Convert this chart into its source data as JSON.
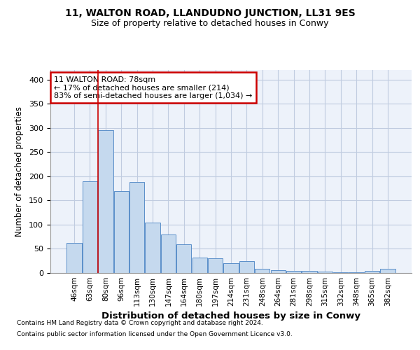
{
  "title1": "11, WALTON ROAD, LLANDUDNO JUNCTION, LL31 9ES",
  "title2": "Size of property relative to detached houses in Conwy",
  "xlabel": "Distribution of detached houses by size in Conwy",
  "ylabel": "Number of detached properties",
  "categories": [
    "46sqm",
    "63sqm",
    "80sqm",
    "96sqm",
    "113sqm",
    "130sqm",
    "147sqm",
    "164sqm",
    "180sqm",
    "197sqm",
    "214sqm",
    "231sqm",
    "248sqm",
    "264sqm",
    "281sqm",
    "298sqm",
    "315sqm",
    "332sqm",
    "348sqm",
    "365sqm",
    "382sqm"
  ],
  "values": [
    63,
    190,
    295,
    170,
    188,
    105,
    80,
    60,
    32,
    31,
    20,
    24,
    8,
    6,
    5,
    4,
    3,
    2,
    1,
    5,
    8
  ],
  "bar_color": "#c5d9ee",
  "bar_edge_color": "#5b8fc9",
  "background_color": "#edf2fa",
  "grid_color": "#c0cce0",
  "vline_color": "#cc0000",
  "annotation_text": "11 WALTON ROAD: 78sqm\n← 17% of detached houses are smaller (214)\n83% of semi-detached houses are larger (1,034) →",
  "annotation_box_color": "#ffffff",
  "annotation_box_edge": "#cc0000",
  "ylim": [
    0,
    420
  ],
  "yticks": [
    0,
    50,
    100,
    150,
    200,
    250,
    300,
    350,
    400
  ],
  "footer1": "Contains HM Land Registry data © Crown copyright and database right 2024.",
  "footer2": "Contains public sector information licensed under the Open Government Licence v3.0."
}
